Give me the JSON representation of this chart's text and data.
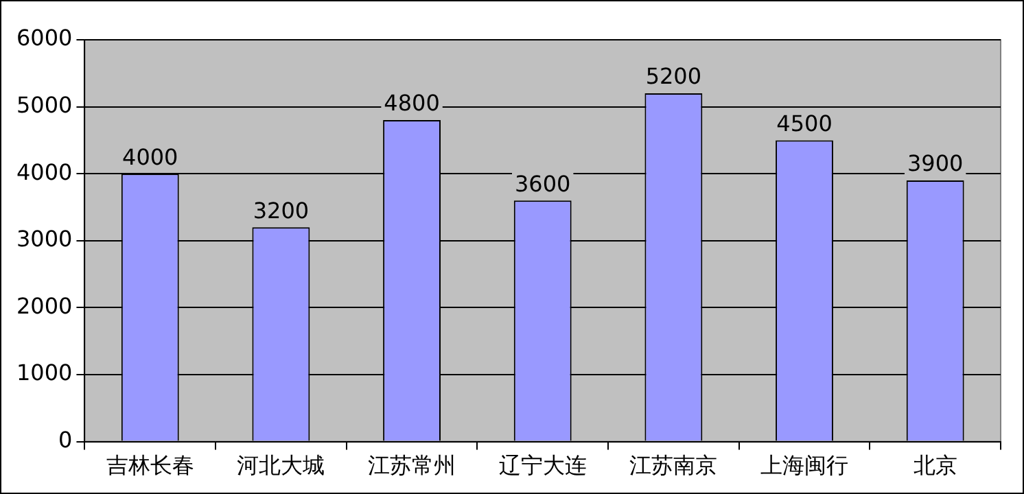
{
  "chart_data": {
    "type": "bar",
    "categories": [
      "吉林长春",
      "河北大城",
      "江苏常州",
      "辽宁大连",
      "江苏南京",
      "上海闽行",
      "北京"
    ],
    "values": [
      4000,
      3200,
      4800,
      3600,
      5200,
      4500,
      3900
    ],
    "color": "#9999ff",
    "ylim": [
      0,
      6000
    ],
    "yticks": [
      0,
      1000,
      2000,
      3000,
      4000,
      5000,
      6000
    ],
    "grid": "y",
    "data_labels": true,
    "legend": false
  }
}
